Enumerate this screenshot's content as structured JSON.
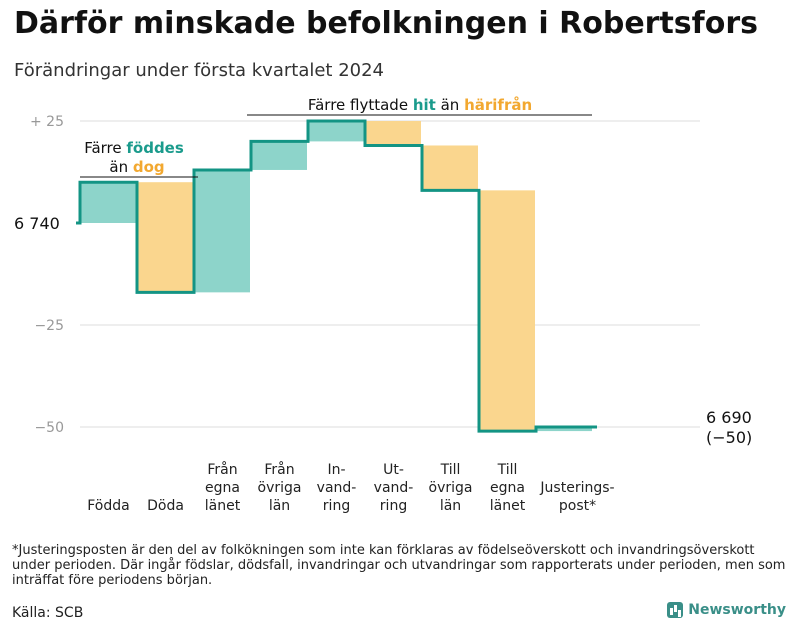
{
  "title": "Därför minskade befolkningen i Robertsfors",
  "subtitle": "Förändringar under första kvartalet 2024",
  "colors": {
    "increase": "#8dd4ca",
    "decrease": "#fad68e",
    "line": "#139484",
    "grid": "#dddddd",
    "tick": "#999999",
    "teal_text": "#1a9b8c",
    "orange_text": "#f2a830"
  },
  "chart_data": {
    "type": "waterfall",
    "start_value": 6740,
    "start_label": "6 740",
    "end_value": 6690,
    "end_label": "6 690",
    "end_change_label": "(−50)",
    "y_ticks": [
      {
        "value": 25,
        "label": "+  25"
      },
      {
        "value": 0,
        "label": ""
      },
      {
        "value": -25,
        "label": "−25"
      },
      {
        "value": -50,
        "label": "−50"
      }
    ],
    "ylim": [
      -52,
      30
    ],
    "categories": [
      {
        "label": "Födda",
        "delta": 10
      },
      {
        "label": "Döda",
        "delta": -27
      },
      {
        "label": "Från egna länet",
        "delta": 30
      },
      {
        "label": "Från övriga län",
        "delta": 7
      },
      {
        "label": "In- vand- ring",
        "delta": 5
      },
      {
        "label": "Ut- vand- ring",
        "delta": -6
      },
      {
        "label": "Till övriga län",
        "delta": -11
      },
      {
        "label": "Till egna länet",
        "delta": -59
      },
      {
        "label": "Justerings- post*",
        "delta": 1
      }
    ],
    "annotations": {
      "birth_line1_prefix": "Färre ",
      "birth_line1_emph": "föddes",
      "birth_line2_prefix": "än ",
      "birth_line2_emph": "dog",
      "move_prefix": "Färre flyttade ",
      "move_emph1": "hit",
      "move_middle": " än ",
      "move_emph2": "härifrån"
    }
  },
  "footnote": "*Justeringsposten är den del av folkökningen som inte kan förklaras av födelseöverskott och invandringsöverskott under perioden. Där ingår födslar, dödsfall, invandringar och utvandringar som rapporterats under perioden, men som inträffat före periodens början.",
  "source": "Källa: SCB",
  "brand": "Newsworthy"
}
